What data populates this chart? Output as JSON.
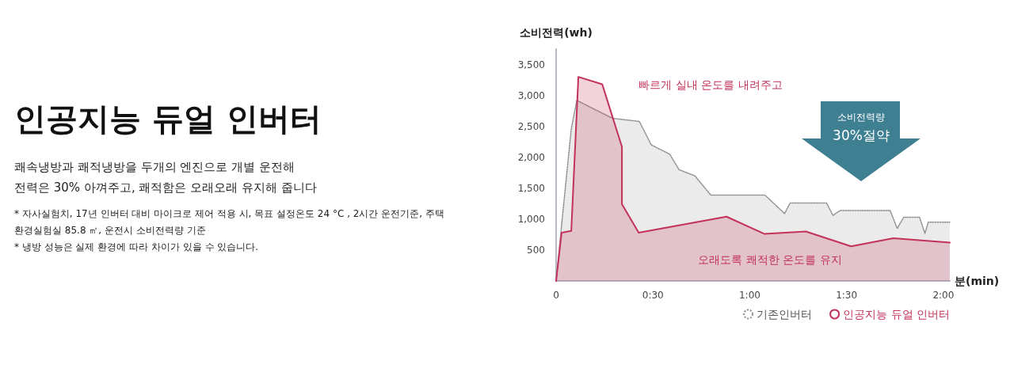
{
  "chart_data": {
    "type": "area",
    "title": "인공지능 듀얼 인버터",
    "subtitle": "쾌속냉방과 쾌적냉방을 두개의 엔진으로 개별 운전해\n전력은 30% 아껴주고, 쾌적함은 오래오래 유지해 줍니다",
    "xlabel": "분(min)",
    "ylabel": "소비전력(wh)",
    "annotations": [
      "* 자사실험치, 17년 인버터 대비 마이크로 제어 적용 시, 목표 설정온도 24 °C , 2시간 운전기준, 주택환경실험실 85.8 ㎡, 운전시 소비전력량 기준",
      "* 냉방 성능은 실제 환경에 따라 차이가 있을 수 있습니다.",
      "소비전력량",
      "30%절약",
      "빠르게 실내 온도를 내려주고",
      "오래도록 쾌적한 온도를 유지"
    ],
    "series": [
      {
        "name": "기존인버터",
        "color": "#8f8f8f",
        "line_style": "dotted",
        "x": [
          0,
          1.5,
          4.7,
          6.4,
          17.5,
          25.8,
          29.5,
          35.2,
          38.1,
          43,
          47.9,
          64.7,
          70.8,
          72.5,
          83.8,
          85.8,
          88,
          103.5,
          105.7,
          107.7,
          112.6,
          114.3,
          115.3,
          122
        ],
        "values": [
          0,
          800,
          2460,
          2920,
          2630,
          2580,
          2200,
          2050,
          1800,
          1700,
          1390,
          1390,
          1090,
          1260,
          1260,
          1060,
          1140,
          1140,
          850,
          1030,
          1030,
          770,
          950,
          950
        ]
      },
      {
        "name": "인공지능 듀얼 인버터",
        "color": "#c2325a",
        "line_style": "solid",
        "x": [
          0,
          1.7,
          4.7,
          6.9,
          14.3,
          20.4,
          20.4,
          25.6,
          52.8,
          64.6,
          77.4,
          91.4,
          104.5,
          122
        ],
        "values": [
          0,
          780,
          810,
          3300,
          3180,
          2170,
          1240,
          780,
          1040,
          760,
          800,
          560,
          690,
          620
        ]
      }
    ],
    "xlim": [
      0,
      122
    ],
    "xticks": [
      0,
      {
        "value": 30,
        "label": "0:30"
      },
      {
        "value": 60,
        "label": "1:00"
      },
      {
        "value": 90,
        "label": "1:30"
      },
      {
        "value": 120,
        "label": "2:00"
      }
    ],
    "ylim": [
      0,
      3750
    ],
    "yticks": [
      {
        "value": 500,
        "label": "500"
      },
      {
        "value": 1000,
        "label": "1,000"
      },
      {
        "value": 1500,
        "label": "1,500"
      },
      {
        "value": 2000,
        "label": "2,000"
      },
      {
        "value": 2500,
        "label": "2,500"
      },
      {
        "value": 3000,
        "label": "3,000"
      },
      {
        "value": 3500,
        "label": "3,500"
      }
    ],
    "grid": false,
    "legend": "bottom right",
    "marker": "none"
  }
}
